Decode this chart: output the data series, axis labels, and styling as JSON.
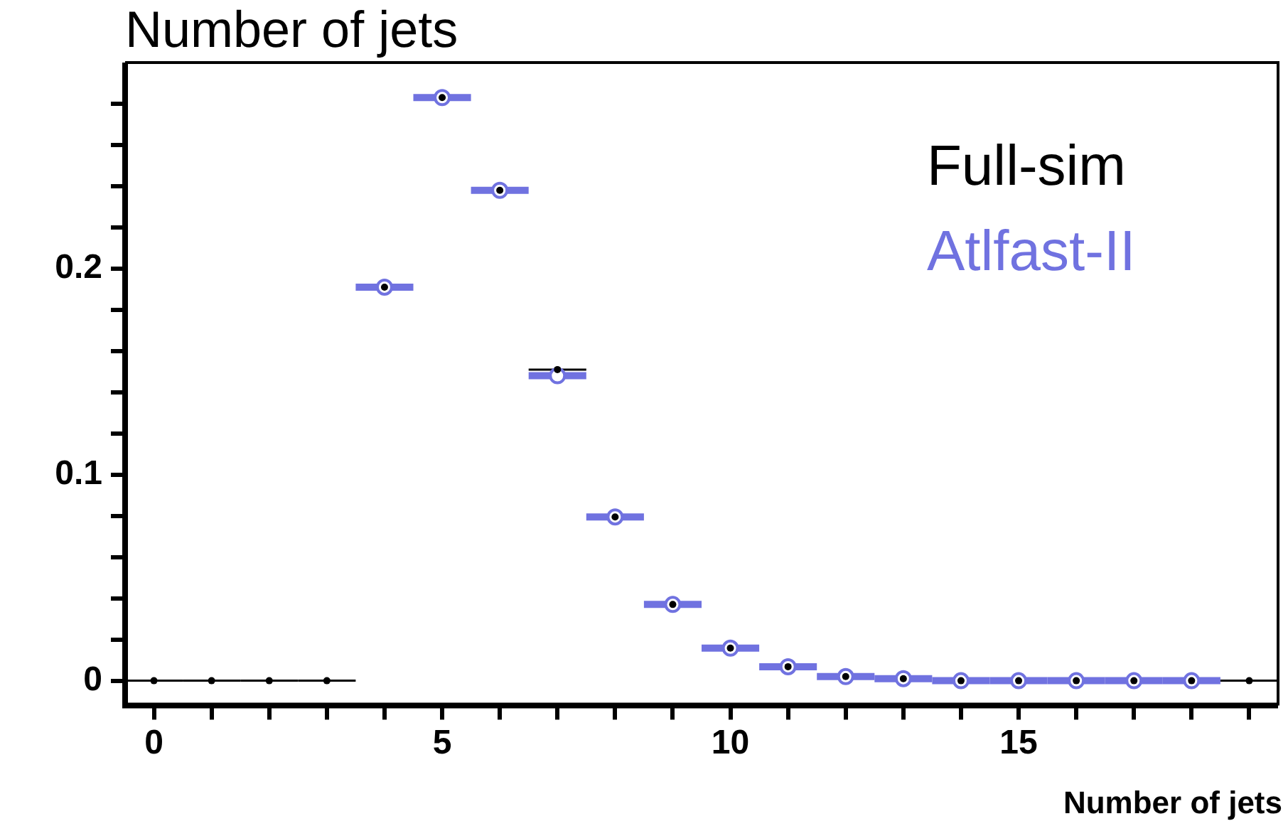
{
  "chart_data": {
    "type": "scatter",
    "title": "Number of jets",
    "xlabel": "Number of jets",
    "xlim": [
      -0.5,
      19.5
    ],
    "ylim": [
      -0.012,
      0.3
    ],
    "xticks": [
      0,
      {
        "value": 1,
        "label": null
      },
      {
        "value": 2,
        "label": null
      },
      {
        "value": 3,
        "label": null
      },
      {
        "value": 4,
        "label": null
      },
      5,
      {
        "value": 6,
        "label": null
      },
      {
        "value": 7,
        "label": null
      },
      {
        "value": 8,
        "label": null
      },
      {
        "value": 9,
        "label": null
      },
      10,
      {
        "value": 11,
        "label": null
      },
      {
        "value": 12,
        "label": null
      },
      {
        "value": 13,
        "label": null
      },
      {
        "value": 14,
        "label": null
      },
      15,
      {
        "value": 16,
        "label": null
      },
      {
        "value": 17,
        "label": null
      },
      {
        "value": 18,
        "label": null
      },
      {
        "value": 19,
        "label": null
      }
    ],
    "yticks": [
      0,
      {
        "value": 0.02,
        "label": null
      },
      {
        "value": 0.04,
        "label": null
      },
      {
        "value": 0.06,
        "label": null
      },
      {
        "value": 0.08,
        "label": null
      },
      0.1,
      {
        "value": 0.12,
        "label": null
      },
      {
        "value": 0.14,
        "label": null
      },
      {
        "value": 0.16,
        "label": null
      },
      {
        "value": 0.18,
        "label": null
      },
      0.2,
      {
        "value": 0.22,
        "label": null
      },
      {
        "value": 0.24,
        "label": null
      },
      {
        "value": 0.26,
        "label": null
      },
      {
        "value": 0.28,
        "label": null
      }
    ],
    "grid": false,
    "legend": "top right",
    "marker": "circle",
    "series": [
      {
        "name": "Full-sim",
        "color": "#000000",
        "x": [
          0,
          1,
          2,
          3,
          4,
          5,
          6,
          7,
          8,
          9,
          10,
          11,
          12,
          13,
          14,
          15,
          16,
          17,
          18,
          19
        ],
        "values": [
          0,
          0,
          0,
          0,
          0.191,
          0.283,
          0.238,
          0.151,
          0.0795,
          0.037,
          0.0158,
          0.0068,
          0.002,
          0.001,
          0,
          0,
          0,
          0,
          0,
          0
        ],
        "xerrors": [
          0.5,
          0.5,
          0.5,
          0.5,
          null,
          null,
          null,
          0.5,
          null,
          null,
          null,
          null,
          null,
          null,
          null,
          null,
          null,
          null,
          null,
          0.5
        ]
      },
      {
        "name": "Atlfast-II",
        "color": "#7072e0",
        "x": [
          4,
          5,
          6,
          7,
          8,
          9,
          10,
          11,
          12,
          13,
          14,
          15,
          16,
          17,
          18
        ],
        "values": [
          0.191,
          0.283,
          0.238,
          0.148,
          0.0795,
          0.037,
          0.0158,
          0.0068,
          0.002,
          0.001,
          0,
          0,
          0,
          0,
          0
        ],
        "xerrors": [
          0.5,
          0.5,
          0.5,
          0.5,
          0.5,
          0.5,
          0.5,
          0.5,
          0.5,
          0.5,
          0.5,
          0.5,
          0.5,
          0.5,
          0.5
        ]
      }
    ]
  }
}
